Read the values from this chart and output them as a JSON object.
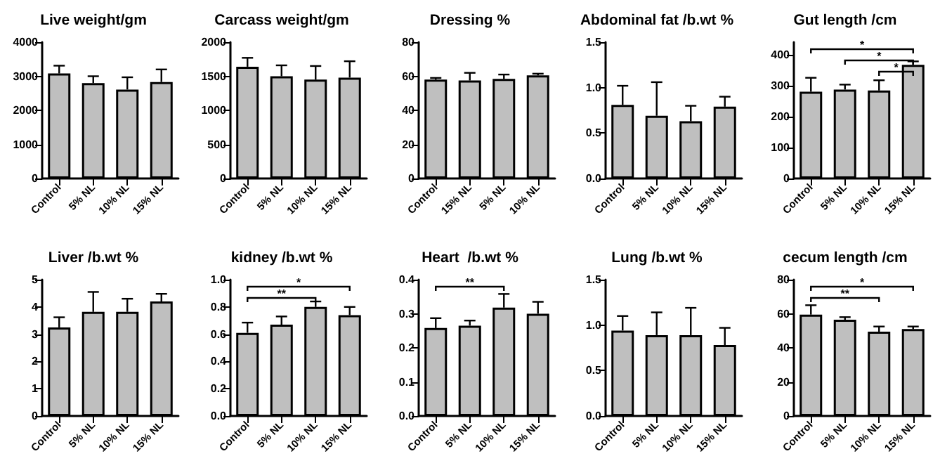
{
  "chart_data": [
    {
      "type": "bar",
      "title": "Live weight/gm",
      "categories": [
        "Control",
        "5% NL",
        "10% NL",
        "15% NL"
      ],
      "values": [
        3080,
        2800,
        2610,
        2830
      ],
      "errors": [
        [
          3080,
          3310
        ],
        [
          2800,
          3000
        ],
        [
          2610,
          2970
        ],
        [
          2830,
          3200
        ]
      ],
      "color": "#bfbfbf",
      "ylim": [
        0,
        4000
      ],
      "yticks": [
        0,
        1000,
        2000,
        3000,
        4000
      ]
    },
    {
      "type": "bar",
      "title": "Carcass weight/gm",
      "categories": [
        "Control",
        "5% NL",
        "10% NL",
        "15% NL"
      ],
      "values": [
        1640,
        1500,
        1450,
        1480
      ],
      "errors": [
        [
          1640,
          1770
        ],
        [
          1500,
          1660
        ],
        [
          1450,
          1650
        ],
        [
          1480,
          1720
        ]
      ],
      "color": "#bfbfbf",
      "ylim": [
        0,
        2000
      ],
      "yticks": [
        0,
        500,
        1000,
        1500,
        2000
      ]
    },
    {
      "type": "bar",
      "title": "Dressing %",
      "categories": [
        "Control",
        "15% NL",
        "5% NL",
        "10% NL"
      ],
      "values": [
        58,
        57.5,
        58.5,
        60.5
      ],
      "errors": [
        [
          58,
          59
        ],
        [
          57.5,
          62
        ],
        [
          58.5,
          61
        ],
        [
          60.5,
          61.5
        ]
      ],
      "color": "#bfbfbf",
      "ylim": [
        0,
        80
      ],
      "yticks": [
        0,
        20,
        40,
        60,
        80
      ]
    },
    {
      "type": "bar",
      "title": "Abdominal fat /b.wt %",
      "categories": [
        "Control",
        "5% NL",
        "10% NL",
        "15% NL"
      ],
      "values": [
        0.81,
        0.69,
        0.63,
        0.79
      ],
      "errors": [
        [
          0.81,
          1.02
        ],
        [
          0.69,
          1.06
        ],
        [
          0.63,
          0.8
        ],
        [
          0.79,
          0.9
        ]
      ],
      "color": "#bfbfbf",
      "ylim": [
        0,
        1.5
      ],
      "yticks": [
        {
          "value": 0,
          "label": "0.0"
        },
        {
          "value": 0.5,
          "label": "0.5"
        },
        {
          "value": 1,
          "label": "1.0"
        },
        {
          "value": 1.5,
          "label": "1.5"
        }
      ]
    },
    {
      "type": "bar",
      "title": "Gut length /cm",
      "categories": [
        "Control",
        "5% NL",
        "10% NL",
        "15% NL"
      ],
      "values": [
        280,
        287,
        284,
        367
      ],
      "errors": [
        [
          280,
          325
        ],
        [
          287,
          303
        ],
        [
          284,
          317
        ],
        [
          367,
          378
        ]
      ],
      "color": "#bfbfbf",
      "ylim": [
        0,
        440
      ],
      "yticks": [
        0,
        100,
        200,
        300,
        400
      ],
      "annotations": [
        "*",
        "*",
        "*"
      ]
    },
    {
      "type": "bar",
      "title": "Liver /b.wt %",
      "categories": [
        "Control",
        "5% NL",
        "10% NL",
        "15% NL"
      ],
      "values": [
        3.25,
        3.82,
        3.82,
        4.2
      ],
      "errors": [
        [
          3.25,
          3.62
        ],
        [
          3.82,
          4.55
        ],
        [
          3.82,
          4.3
        ],
        [
          4.2,
          4.48
        ]
      ],
      "color": "#bfbfbf",
      "ylim": [
        0,
        5
      ],
      "yticks": [
        0,
        1,
        2,
        3,
        4,
        5
      ]
    },
    {
      "type": "bar",
      "title": "kidney /b.wt %",
      "categories": [
        "Control",
        "5% NL",
        "10% NL",
        "15% NL"
      ],
      "values": [
        0.61,
        0.67,
        0.8,
        0.74
      ],
      "errors": [
        [
          0.61,
          0.685
        ],
        [
          0.67,
          0.73
        ],
        [
          0.8,
          0.84
        ],
        [
          0.74,
          0.8
        ]
      ],
      "color": "#bfbfbf",
      "ylim": [
        0,
        1
      ],
      "yticks": [
        {
          "value": 0,
          "label": "0.0"
        },
        {
          "value": 0.2,
          "label": "0.2"
        },
        {
          "value": 0.4,
          "label": "0.4"
        },
        {
          "value": 0.6,
          "label": "0.6"
        },
        {
          "value": 0.8,
          "label": "0.8"
        },
        {
          "value": 1,
          "label": "1.0"
        }
      ],
      "annotations": [
        "*",
        "**"
      ]
    },
    {
      "type": "bar",
      "title": "Heart  /b.wt %",
      "categories": [
        "Control",
        "5% NL",
        "10% NL",
        "15% NL"
      ],
      "values": [
        0.258,
        0.265,
        0.318,
        0.3
      ],
      "errors": [
        [
          0.258,
          0.287
        ],
        [
          0.265,
          0.28
        ],
        [
          0.318,
          0.358
        ],
        [
          0.3,
          0.335
        ]
      ],
      "color": "#bfbfbf",
      "ylim": [
        0,
        0.4
      ],
      "yticks": [
        {
          "value": 0,
          "label": "0.0"
        },
        {
          "value": 0.1,
          "label": "0.1"
        },
        {
          "value": 0.2,
          "label": "0.2"
        },
        {
          "value": 0.3,
          "label": "0.3"
        },
        {
          "value": 0.4,
          "label": "0.4"
        }
      ],
      "annotations": [
        "**"
      ]
    },
    {
      "type": "bar",
      "title": "Lung /b.wt %",
      "categories": [
        "Control",
        "5% NL",
        "10% NL",
        "15% NL"
      ],
      "values": [
        0.94,
        0.89,
        0.89,
        0.78
      ],
      "errors": [
        [
          0.94,
          1.1
        ],
        [
          0.89,
          1.14
        ],
        [
          0.89,
          1.19
        ],
        [
          0.78,
          0.97
        ]
      ],
      "color": "#bfbfbf",
      "ylim": [
        0,
        1.5
      ],
      "yticks": [
        {
          "value": 0,
          "label": "0.0"
        },
        {
          "value": 0.5,
          "label": "0.5"
        },
        {
          "value": 1,
          "label": "1.0"
        },
        {
          "value": 1.5,
          "label": "1.5"
        }
      ]
    },
    {
      "type": "bar",
      "title": "cecum length /cm",
      "categories": [
        "Control",
        "5% NL",
        "10% NL",
        "15% NL"
      ],
      "values": [
        59.5,
        56.5,
        49.5,
        51
      ],
      "errors": [
        [
          59.5,
          65
        ],
        [
          56.5,
          58
        ],
        [
          49.5,
          52.5
        ],
        [
          51,
          52.5
        ]
      ],
      "color": "#bfbfbf",
      "ylim": [
        0,
        80
      ],
      "yticks": [
        0,
        20,
        40,
        60,
        80
      ],
      "annotations": [
        "*",
        "**"
      ]
    }
  ]
}
